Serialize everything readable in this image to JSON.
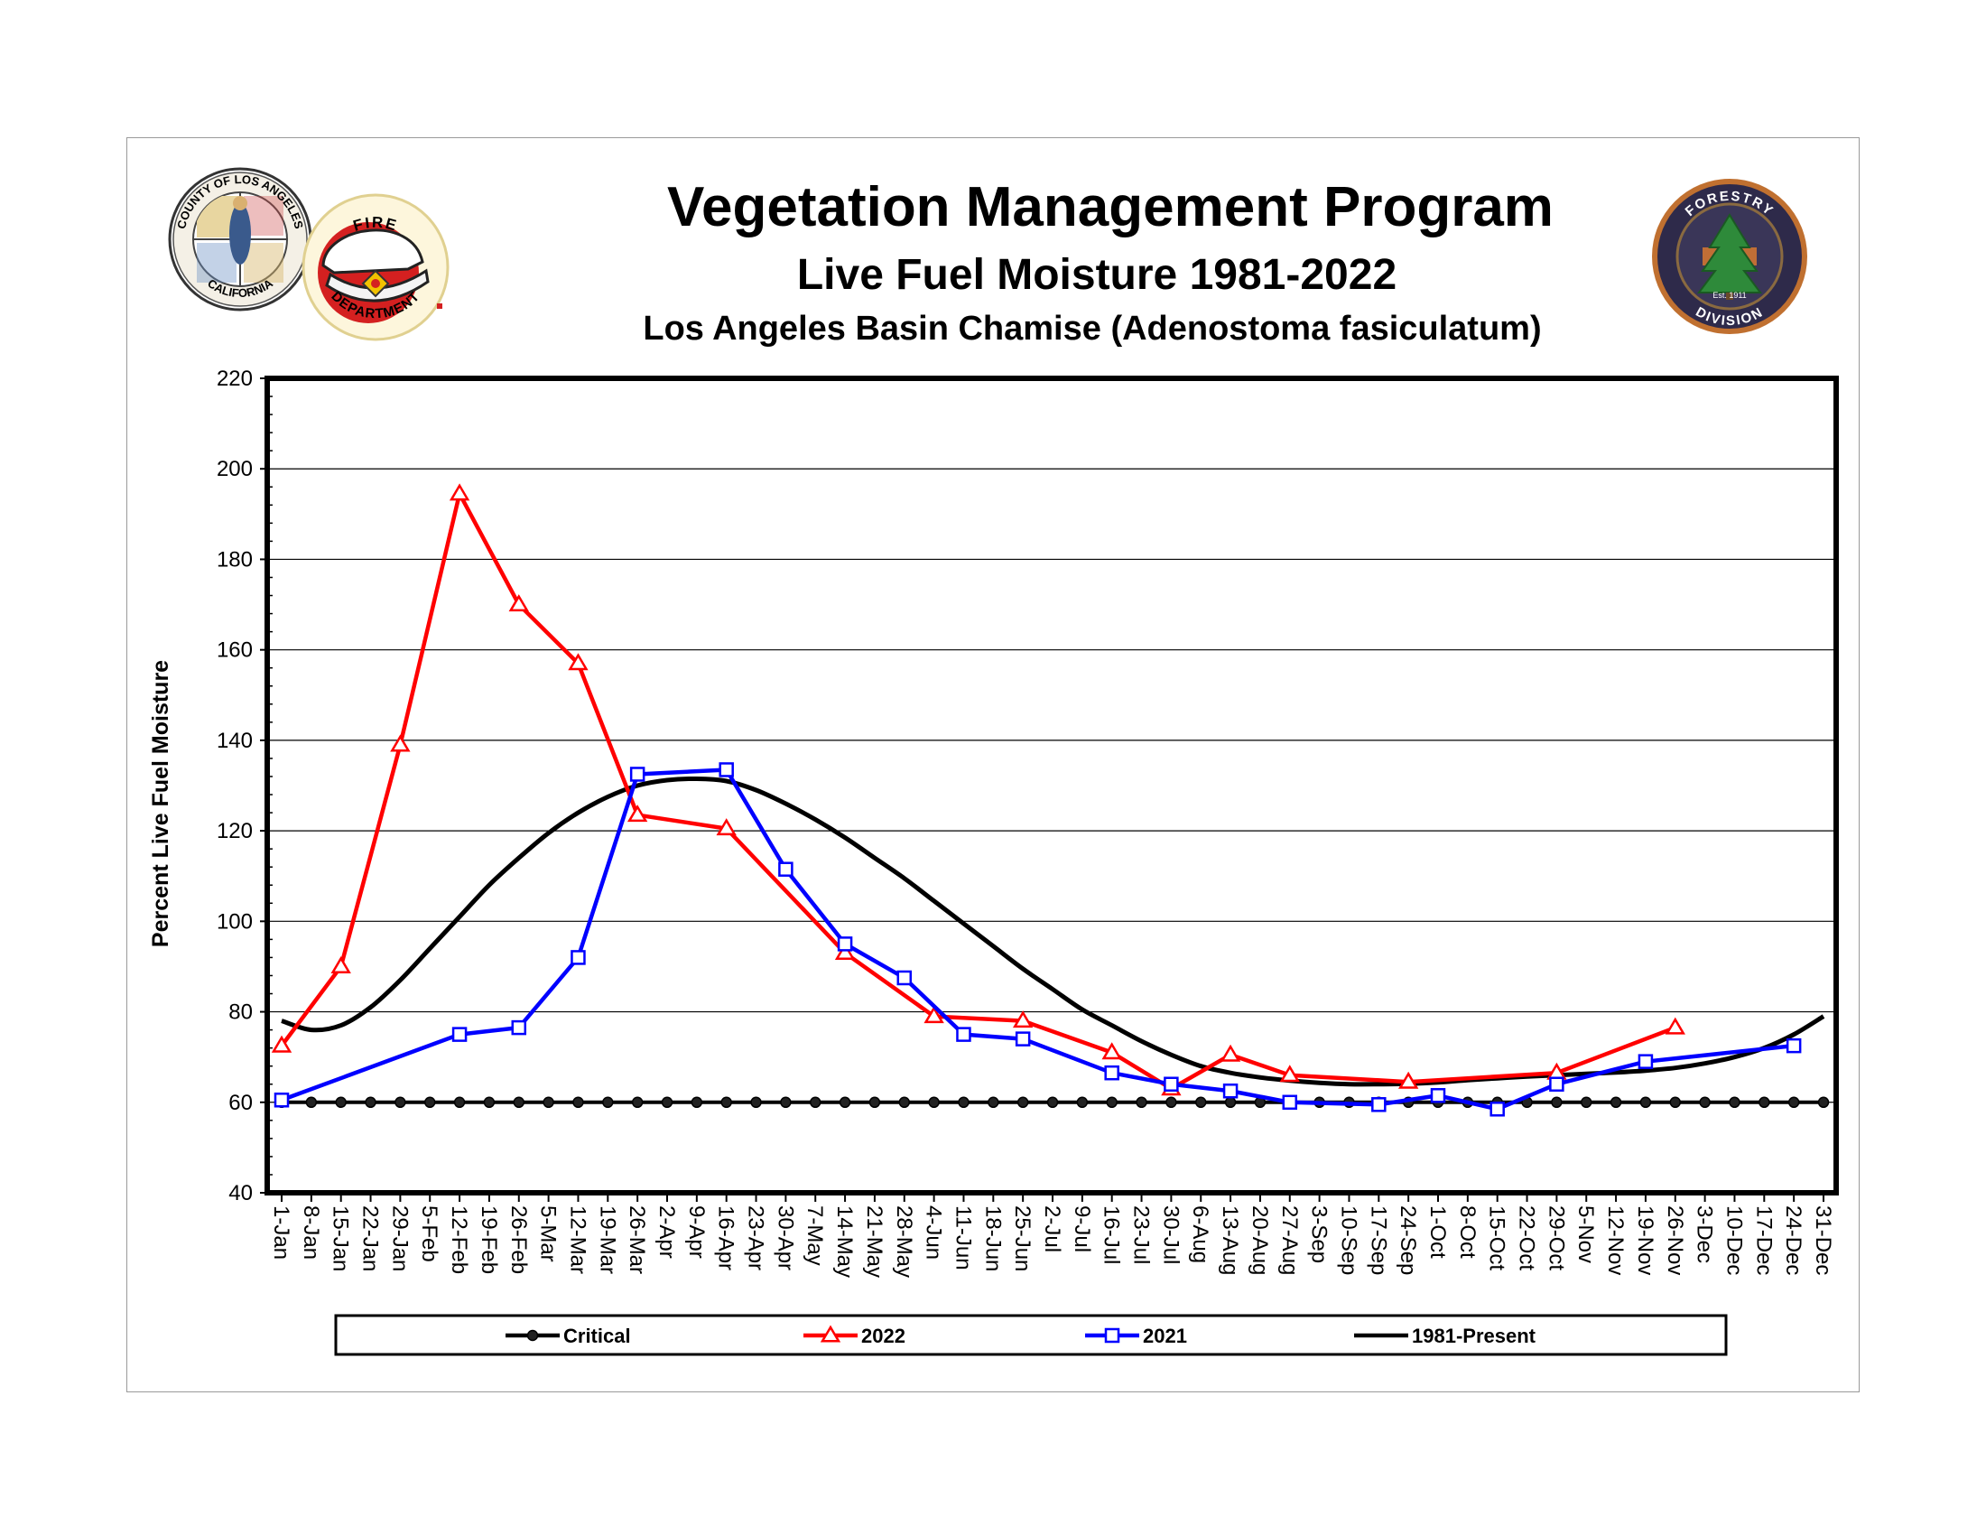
{
  "header": {
    "title": "Vegetation Management Program",
    "subtitle": "Live Fuel Moisture 1981-2022",
    "subtitle2": "Los Angeles Basin Chamise (Adenostoma fasiculatum)"
  },
  "logos": {
    "county_seal": {
      "top_text": "COUNTY OF LOS ANGELES",
      "bottom_text": "CALIFORNIA"
    },
    "fire_dept": {
      "top_text": "FIRE",
      "bottom_text": "DEPARTMENT"
    },
    "forestry": {
      "top_text": "FORESTRY",
      "bottom_text": "DIVISION",
      "est_text": "Est. 1911"
    }
  },
  "colors": {
    "critical": "#000000",
    "y2022": "#ff0000",
    "y2021": "#0000ff",
    "historical": "#000000",
    "forestry_badge": "#2e2a4a",
    "forestry_ring": "#c07030",
    "fire_red": "#d42020"
  },
  "chart_data": {
    "type": "line",
    "title": "Vegetation Management Program",
    "ylabel": "Percent Live Fuel Moisture",
    "xlabel": "",
    "ylim": [
      40,
      220
    ],
    "yticks": [
      40,
      60,
      80,
      100,
      120,
      140,
      160,
      180,
      200,
      220
    ],
    "grid": true,
    "legend_position": "bottom",
    "categories": [
      "1-Jan",
      "8-Jan",
      "15-Jan",
      "22-Jan",
      "29-Jan",
      "5-Feb",
      "12-Feb",
      "19-Feb",
      "26-Feb",
      "5-Mar",
      "12-Mar",
      "19-Mar",
      "26-Mar",
      "2-Apr",
      "9-Apr",
      "16-Apr",
      "23-Apr",
      "30-Apr",
      "7-May",
      "14-May",
      "21-May",
      "28-May",
      "4-Jun",
      "11-Jun",
      "18-Jun",
      "25-Jun",
      "2-Jul",
      "9-Jul",
      "16-Jul",
      "23-Jul",
      "30-Jul",
      "6-Aug",
      "13-Aug",
      "20-Aug",
      "27-Aug",
      "3-Sep",
      "10-Sep",
      "17-Sep",
      "24-Sep",
      "1-Oct",
      "8-Oct",
      "15-Oct",
      "22-Oct",
      "29-Oct",
      "5-Nov",
      "12-Nov",
      "19-Nov",
      "26-Nov",
      "3-Dec",
      "10-Dec",
      "17-Dec",
      "24-Dec",
      "31-Dec"
    ],
    "series": [
      {
        "name": "Critical",
        "marker": "circle",
        "points": [
          [
            0,
            60
          ],
          [
            1,
            60
          ],
          [
            2,
            60
          ],
          [
            3,
            60
          ],
          [
            4,
            60
          ],
          [
            5,
            60
          ],
          [
            6,
            60
          ],
          [
            7,
            60
          ],
          [
            8,
            60
          ],
          [
            9,
            60
          ],
          [
            10,
            60
          ],
          [
            11,
            60
          ],
          [
            12,
            60
          ],
          [
            13,
            60
          ],
          [
            14,
            60
          ],
          [
            15,
            60
          ],
          [
            16,
            60
          ],
          [
            17,
            60
          ],
          [
            18,
            60
          ],
          [
            19,
            60
          ],
          [
            20,
            60
          ],
          [
            21,
            60
          ],
          [
            22,
            60
          ],
          [
            23,
            60
          ],
          [
            24,
            60
          ],
          [
            25,
            60
          ],
          [
            26,
            60
          ],
          [
            27,
            60
          ],
          [
            28,
            60
          ],
          [
            29,
            60
          ],
          [
            30,
            60
          ],
          [
            31,
            60
          ],
          [
            32,
            60
          ],
          [
            33,
            60
          ],
          [
            34,
            60
          ],
          [
            35,
            60
          ],
          [
            36,
            60
          ],
          [
            37,
            60
          ],
          [
            38,
            60
          ],
          [
            39,
            60
          ],
          [
            40,
            60
          ],
          [
            41,
            60
          ],
          [
            42,
            60
          ],
          [
            43,
            60
          ],
          [
            44,
            60
          ],
          [
            45,
            60
          ],
          [
            46,
            60
          ],
          [
            47,
            60
          ],
          [
            48,
            60
          ],
          [
            49,
            60
          ],
          [
            50,
            60
          ],
          [
            51,
            60
          ],
          [
            52,
            60
          ]
        ]
      },
      {
        "name": "2022",
        "marker": "triangle",
        "points": [
          [
            0,
            72.5
          ],
          [
            2,
            90
          ],
          [
            4,
            139
          ],
          [
            6,
            194.5
          ],
          [
            8,
            170
          ],
          [
            10,
            157
          ],
          [
            12,
            123.5
          ],
          [
            15,
            120.5
          ],
          [
            19,
            93
          ],
          [
            22,
            79
          ],
          [
            25,
            78
          ],
          [
            28,
            71
          ],
          [
            30,
            63
          ],
          [
            32,
            70.5
          ],
          [
            34,
            66
          ],
          [
            38,
            64.5
          ],
          [
            43,
            66.5
          ],
          [
            47,
            76.5
          ]
        ]
      },
      {
        "name": "2021",
        "marker": "square",
        "points": [
          [
            0,
            60.5
          ],
          [
            6,
            75
          ],
          [
            8,
            76.5
          ],
          [
            10,
            92
          ],
          [
            12,
            132.5
          ],
          [
            15,
            133.5
          ],
          [
            17,
            111.5
          ],
          [
            19,
            95
          ],
          [
            21,
            87.5
          ],
          [
            23,
            75
          ],
          [
            25,
            74
          ],
          [
            28,
            66.5
          ],
          [
            30,
            64
          ],
          [
            32,
            62.5
          ],
          [
            34,
            60
          ],
          [
            37,
            59.5
          ],
          [
            39,
            61.5
          ],
          [
            41,
            58.5
          ],
          [
            43,
            64
          ],
          [
            46,
            69
          ],
          [
            51,
            72.5
          ]
        ]
      },
      {
        "name": "1981-Present",
        "marker": "none",
        "smooth": true,
        "points": [
          [
            0,
            78
          ],
          [
            1,
            76
          ],
          [
            2,
            77
          ],
          [
            3,
            81
          ],
          [
            4,
            87
          ],
          [
            5,
            94
          ],
          [
            6,
            101
          ],
          [
            7,
            108
          ],
          [
            8,
            114
          ],
          [
            9,
            119.5
          ],
          [
            10,
            124
          ],
          [
            11,
            127.5
          ],
          [
            12,
            130
          ],
          [
            13,
            131.2
          ],
          [
            14,
            131.5
          ],
          [
            15,
            131
          ],
          [
            16,
            129
          ],
          [
            17,
            126
          ],
          [
            18,
            122.5
          ],
          [
            19,
            118.5
          ],
          [
            20,
            114
          ],
          [
            21,
            109.5
          ],
          [
            22,
            104.5
          ],
          [
            23,
            99.5
          ],
          [
            24,
            94.5
          ],
          [
            25,
            89.5
          ],
          [
            26,
            85
          ],
          [
            27,
            80.5
          ],
          [
            28,
            77
          ],
          [
            29,
            73.5
          ],
          [
            30,
            70.5
          ],
          [
            31,
            68
          ],
          [
            32,
            66.5
          ],
          [
            33,
            65.5
          ],
          [
            34,
            64.8
          ],
          [
            35,
            64.3
          ],
          [
            36,
            64
          ],
          [
            37,
            64
          ],
          [
            38,
            64.1
          ],
          [
            39,
            64.4
          ],
          [
            40,
            64.9
          ],
          [
            41,
            65.3
          ],
          [
            42,
            65.7
          ],
          [
            43,
            66
          ],
          [
            44,
            66.3
          ],
          [
            45,
            66.6
          ],
          [
            46,
            67
          ],
          [
            47,
            67.6
          ],
          [
            48,
            68.6
          ],
          [
            49,
            70
          ],
          [
            50,
            72
          ],
          [
            51,
            75
          ],
          [
            52,
            79
          ]
        ]
      }
    ]
  }
}
